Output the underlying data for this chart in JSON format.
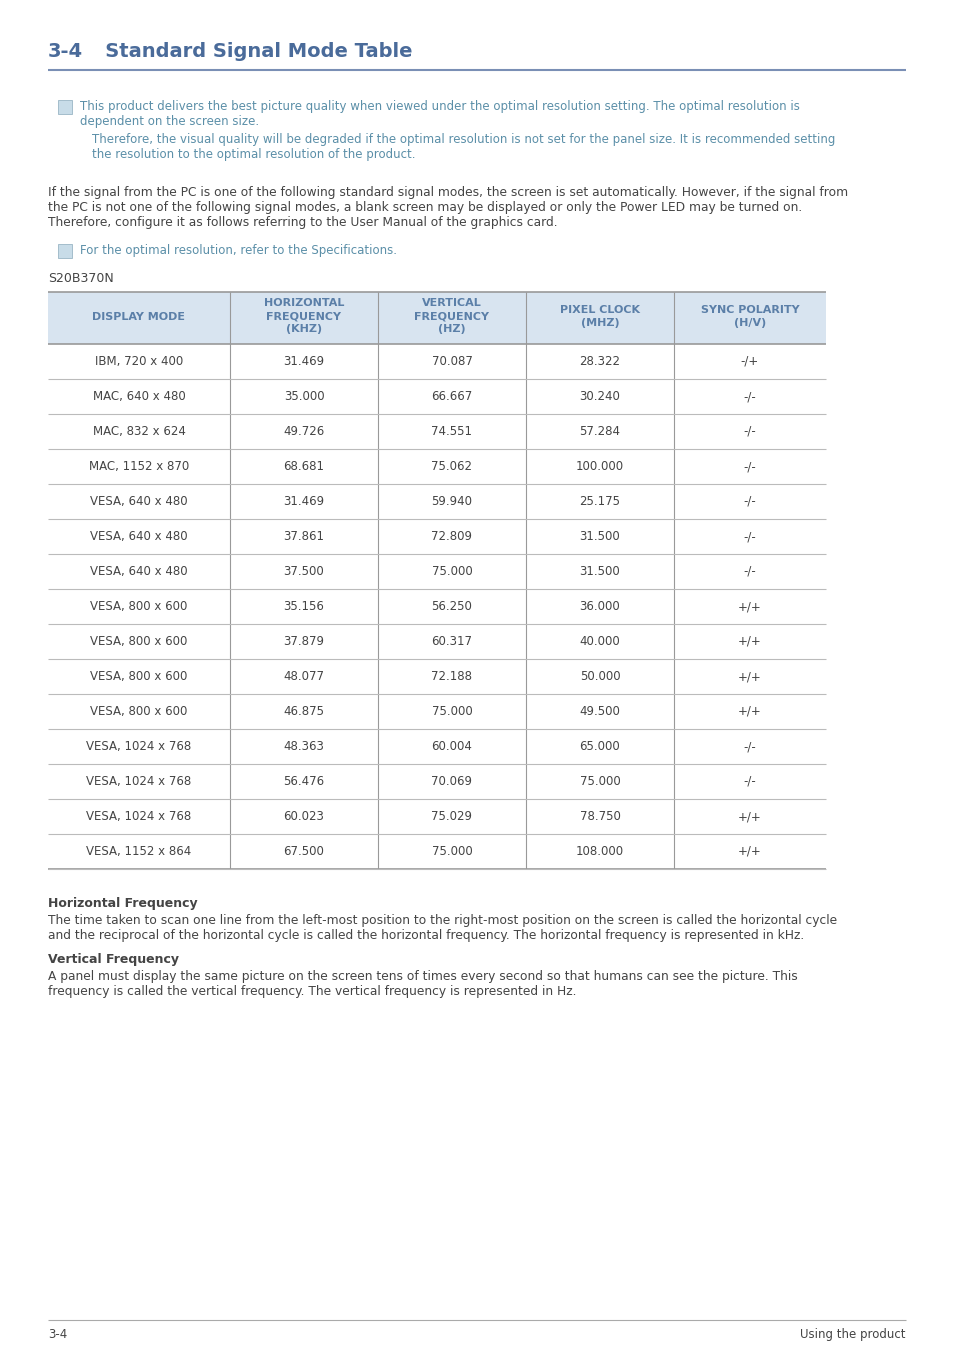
{
  "title_prefix": "3-4",
  "title_main": "   Standard Signal Mode Table",
  "title_color": "#4a6b9a",
  "title_line_color": "#7a8fb5",
  "page_bg": "#ffffff",
  "note_color": "#5b8fa8",
  "body_text_color": "#444444",
  "note1_line1": "This product delivers the best picture quality when viewed under the optimal resolution setting. The optimal resolution is",
  "note1_line2": "dependent on the screen size.",
  "note2_line1": "Therefore, the visual quality will be degraded if the optimal resolution is not set for the panel size. It is recommended setting",
  "note2_line2": "the resolution to the optimal resolution of the product.",
  "body_para_line1": "If the signal from the PC is one of the following standard signal modes, the screen is set automatically. However, if the signal from",
  "body_para_line2": "the PC is not one of the following signal modes, a blank screen may be displayed or only the Power LED may be turned on.",
  "body_para_line3": "Therefore, configure it as follows referring to the User Manual of the graphics card.",
  "note3": "For the optimal resolution, refer to the Specifications.",
  "table_label": "S20B370N",
  "table_header_row1": [
    "DISPLAY MODE",
    "HORIZONTAL",
    "VERTICAL",
    "PIXEL CLOCK",
    "SYNC POLARITY"
  ],
  "table_header_row2": [
    "",
    "FREQUENCY",
    "FREQUENCY",
    "(MHZ)",
    "(H/V)"
  ],
  "table_header_row3": [
    "",
    "(KHZ)",
    "(HZ)",
    "",
    ""
  ],
  "header_text_color": "#5b7fa8",
  "header_bg": "#d8e4f0",
  "table_border_color": "#999999",
  "table_line_color": "#bbbbbb",
  "table_data": [
    [
      "IBM, 720 x 400",
      "31.469",
      "70.087",
      "28.322",
      "-/+"
    ],
    [
      "MAC, 640 x 480",
      "35.000",
      "66.667",
      "30.240",
      "-/-"
    ],
    [
      "MAC, 832 x 624",
      "49.726",
      "74.551",
      "57.284",
      "-/-"
    ],
    [
      "MAC, 1152 x 870",
      "68.681",
      "75.062",
      "100.000",
      "-/-"
    ],
    [
      "VESA, 640 x 480",
      "31.469",
      "59.940",
      "25.175",
      "-/-"
    ],
    [
      "VESA, 640 x 480",
      "37.861",
      "72.809",
      "31.500",
      "-/-"
    ],
    [
      "VESA, 640 x 480",
      "37.500",
      "75.000",
      "31.500",
      "-/-"
    ],
    [
      "VESA, 800 x 600",
      "35.156",
      "56.250",
      "36.000",
      "+/+"
    ],
    [
      "VESA, 800 x 600",
      "37.879",
      "60.317",
      "40.000",
      "+/+"
    ],
    [
      "VESA, 800 x 600",
      "48.077",
      "72.188",
      "50.000",
      "+/+"
    ],
    [
      "VESA, 800 x 600",
      "46.875",
      "75.000",
      "49.500",
      "+/+"
    ],
    [
      "VESA, 1024 x 768",
      "48.363",
      "60.004",
      "65.000",
      "-/-"
    ],
    [
      "VESA, 1024 x 768",
      "56.476",
      "70.069",
      "75.000",
      "-/-"
    ],
    [
      "VESA, 1024 x 768",
      "60.023",
      "75.029",
      "78.750",
      "+/+"
    ],
    [
      "VESA, 1152 x 864",
      "67.500",
      "75.000",
      "108.000",
      "+/+"
    ]
  ],
  "footer_left": "3-4",
  "footer_right": "Using the product",
  "hfreq_title": "Horizontal Frequency",
  "hfreq_body_line1": "The time taken to scan one line from the left-most position to the right-most position on the screen is called the horizontal cycle",
  "hfreq_body_line2": "and the reciprocal of the horizontal cycle is called the horizontal frequency. The horizontal frequency is represented in kHz.",
  "vfreq_title": "Vertical Frequency",
  "vfreq_body_line1": "A panel must display the same picture on the screen tens of times every second so that humans can see the picture. This",
  "vfreq_body_line2": "frequency is called the vertical frequency. The vertical frequency is represented in Hz."
}
